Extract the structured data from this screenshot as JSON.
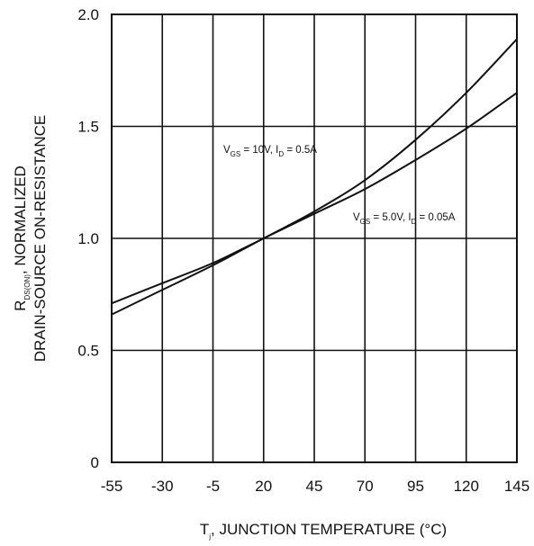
{
  "chart_data": {
    "type": "line",
    "title": "",
    "xlabel": {
      "main": "T",
      "sub": "j",
      "rest": ", JUNCTION TEMPERATURE (°C)"
    },
    "ylabel": {
      "line1_main": "R",
      "line1_sub": "DS(ON)",
      "line1_rest": ", NORMALIZED",
      "line2": "DRAIN-SOURCE ON-RESISTANCE"
    },
    "xlim": [
      -55,
      145
    ],
    "ylim": [
      0,
      2.0
    ],
    "x_ticks": [
      -55,
      -30,
      -5,
      20,
      45,
      70,
      95,
      120,
      145
    ],
    "x_tick_labels": [
      "-55",
      "-30",
      "-5",
      "20",
      "45",
      "70",
      "95",
      "120",
      "145"
    ],
    "y_ticks": [
      0,
      0.5,
      1.0,
      1.5,
      2.0
    ],
    "y_tick_labels": [
      "0",
      "0.5",
      "1.0",
      "1.5",
      "2.0"
    ],
    "grid": true,
    "series": [
      {
        "x": [
          -55,
          -30,
          -5,
          20,
          45,
          70,
          95,
          120,
          145
        ],
        "y": [
          0.66,
          0.77,
          0.88,
          1.0,
          1.12,
          1.26,
          1.44,
          1.65,
          1.89
        ]
      },
      {
        "x": [
          -55,
          -30,
          -5,
          20,
          45,
          70,
          95,
          120,
          145
        ],
        "y": [
          0.71,
          0.8,
          0.89,
          1.0,
          1.11,
          1.22,
          1.35,
          1.49,
          1.65
        ]
      }
    ],
    "annotations": [
      {
        "parts": [
          {
            "t": "V",
            "s": "main"
          },
          {
            "t": "GS",
            "s": "sub"
          },
          {
            "t": " = 10V, I",
            "s": "main"
          },
          {
            "t": "D",
            "s": "sub"
          },
          {
            "t": " = 0.5A",
            "s": "main"
          }
        ]
      },
      {
        "parts": [
          {
            "t": "V",
            "s": "main"
          },
          {
            "t": "GS",
            "s": "sub"
          },
          {
            "t": " = 5.0V, I",
            "s": "main"
          },
          {
            "t": "D",
            "s": "sub"
          },
          {
            "t": " = 0.05A",
            "s": "main"
          }
        ]
      }
    ]
  }
}
